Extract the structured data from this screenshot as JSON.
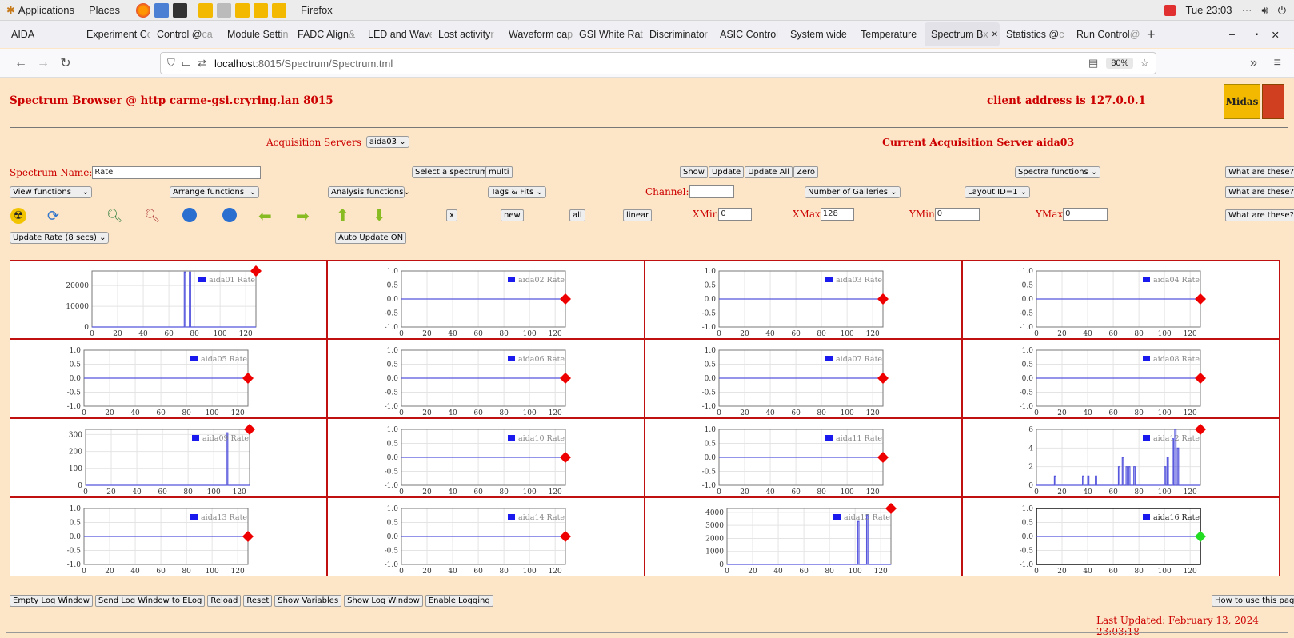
{
  "gnome": {
    "applications": "Applications",
    "places": "Places",
    "active_app": "Firefox",
    "clock": "Tue 23:03"
  },
  "tabs": [
    {
      "label": "AIDA",
      "fade": ""
    },
    {
      "label": "Experiment C",
      "fade": "o"
    },
    {
      "label": "Control @ ",
      "fade": "ca"
    },
    {
      "label": "Module Setti",
      "fade": "n"
    },
    {
      "label": "FADC Align ",
      "fade": "&"
    },
    {
      "label": "LED and Wav",
      "fade": "e"
    },
    {
      "label": "Lost activity ",
      "fade": "r"
    },
    {
      "label": "Waveform ca",
      "fade": "p"
    },
    {
      "label": "GSI White Ra",
      "fade": "t"
    },
    {
      "label": "Discriminato",
      "fade": "r"
    },
    {
      "label": "ASIC Contro",
      "fade": "l"
    },
    {
      "label": "System wide",
      "fade": ""
    },
    {
      "label": "Temperature",
      "fade": ""
    },
    {
      "label": "Spectrum B",
      "fade": "x"
    },
    {
      "label": "Statistics @ ",
      "fade": "c"
    },
    {
      "label": "Run Control ",
      "fade": "@"
    }
  ],
  "nav": {
    "url_host": "localhost",
    "url_path": ":8015/Spectrum/Spectrum.tml",
    "zoom": "80%"
  },
  "page": {
    "browser_title": "Spectrum Browser @ http carme-gsi.cryring.lan 8015",
    "client_address": "client address is 127.0.0.1",
    "logo_text": "Midas",
    "acq_servers_label": "Acquisition Servers",
    "acq_server_value": "aida03",
    "current_server": "Current Acquisition Server aida03",
    "spectrum_name_label": "Spectrum Name:",
    "spectrum_name_value": "Rate",
    "select_spectrum": "Select a spectrum",
    "multi": "multi",
    "show": "Show",
    "update": "Update",
    "update_all": "Update All",
    "zero": "Zero",
    "spectra_functions": "Spectra functions",
    "what": "What are these?",
    "view_functions": "View functions",
    "arrange_functions": "Arrange functions",
    "analysis_functions": "Analysis functions",
    "tags_fits": "Tags & Fits",
    "channel_label": "Channel:",
    "channel_value": "",
    "num_galleries": "Number of Galleries",
    "layout": "Layout ID=1",
    "btn_x": "x",
    "btn_new": "new",
    "btn_all": "all",
    "btn_linear": "linear",
    "xmin_label": "XMin",
    "xmin_value": "0",
    "xmax_label": "XMax",
    "xmax_value": "128",
    "ymin_label": "YMin",
    "ymin_value": "0",
    "ymax_label": "YMax",
    "ymax_value": "0",
    "update_rate": "Update Rate (8 secs)",
    "auto_update": "Auto Update ON",
    "bottom_buttons": [
      "Empty Log Window",
      "Send Log Window to ELog",
      "Reload",
      "Reset",
      "Show Variables",
      "Show Log Window",
      "Enable Logging"
    ],
    "how_to": "How to use this page",
    "last_updated": "Last Updated: February 13, 2024 23:03:18"
  },
  "colors": {
    "accent_red": "#cc0000",
    "series_blue": "#2222dd",
    "marker_red": "#ee0000",
    "marker_green": "#22dd22"
  },
  "chart_data": [
    {
      "type": "line",
      "legend": "aida01 Rate",
      "xlim": [
        0,
        128
      ],
      "ylim": [
        0,
        27000
      ],
      "yticks": [
        0,
        10000,
        20000
      ],
      "marker": "red",
      "spikes": [
        [
          72,
          26500
        ],
        [
          76,
          26500
        ]
      ]
    },
    {
      "type": "line",
      "legend": "aida02 Rate",
      "xlim": [
        0,
        128
      ],
      "ylim": [
        -1,
        1
      ],
      "yticks": [
        -1.0,
        -0.5,
        0.0,
        0.5,
        1.0
      ],
      "marker": "red",
      "spikes": []
    },
    {
      "type": "line",
      "legend": "aida03 Rate",
      "xlim": [
        0,
        128
      ],
      "ylim": [
        -1,
        1
      ],
      "yticks": [
        -1.0,
        -0.5,
        0.0,
        0.5,
        1.0
      ],
      "marker": "red",
      "spikes": []
    },
    {
      "type": "line",
      "legend": "aida04 Rate",
      "xlim": [
        0,
        128
      ],
      "ylim": [
        -1,
        1
      ],
      "yticks": [
        -1.0,
        -0.5,
        0.0,
        0.5,
        1.0
      ],
      "marker": "red",
      "spikes": []
    },
    {
      "type": "line",
      "legend": "aida05 Rate",
      "xlim": [
        0,
        128
      ],
      "ylim": [
        -1,
        1
      ],
      "yticks": [
        -1.0,
        -0.5,
        0.0,
        0.5,
        1.0
      ],
      "marker": "red",
      "spikes": []
    },
    {
      "type": "line",
      "legend": "aida06 Rate",
      "xlim": [
        0,
        128
      ],
      "ylim": [
        -1,
        1
      ],
      "yticks": [
        -1.0,
        -0.5,
        0.0,
        0.5,
        1.0
      ],
      "marker": "red",
      "spikes": []
    },
    {
      "type": "line",
      "legend": "aida07 Rate",
      "xlim": [
        0,
        128
      ],
      "ylim": [
        -1,
        1
      ],
      "yticks": [
        -1.0,
        -0.5,
        0.0,
        0.5,
        1.0
      ],
      "marker": "red",
      "spikes": []
    },
    {
      "type": "line",
      "legend": "aida08 Rate",
      "xlim": [
        0,
        128
      ],
      "ylim": [
        -1,
        1
      ],
      "yticks": [
        -1.0,
        -0.5,
        0.0,
        0.5,
        1.0
      ],
      "marker": "red",
      "spikes": []
    },
    {
      "type": "line",
      "legend": "aida09 Rate",
      "xlim": [
        0,
        128
      ],
      "ylim": [
        0,
        330
      ],
      "yticks": [
        0,
        100,
        200,
        300
      ],
      "marker": "red",
      "spikes": [
        [
          110,
          310
        ]
      ]
    },
    {
      "type": "line",
      "legend": "aida10 Rate",
      "xlim": [
        0,
        128
      ],
      "ylim": [
        -1,
        1
      ],
      "yticks": [
        -1.0,
        -0.5,
        0.0,
        0.5,
        1.0
      ],
      "marker": "red",
      "spikes": []
    },
    {
      "type": "line",
      "legend": "aida11 Rate",
      "xlim": [
        0,
        128
      ],
      "ylim": [
        -1,
        1
      ],
      "yticks": [
        -1.0,
        -0.5,
        0.0,
        0.5,
        1.0
      ],
      "marker": "red",
      "spikes": []
    },
    {
      "type": "line",
      "legend": "aida12 Rate",
      "xlim": [
        0,
        128
      ],
      "ylim": [
        0,
        6
      ],
      "yticks": [
        0,
        2,
        4,
        6
      ],
      "marker": "red",
      "spikes": [
        [
          14,
          1
        ],
        [
          36,
          1
        ],
        [
          40,
          1
        ],
        [
          46,
          1
        ],
        [
          64,
          2
        ],
        [
          67,
          3
        ],
        [
          70,
          2
        ],
        [
          72,
          2
        ],
        [
          76,
          2
        ],
        [
          100,
          2
        ],
        [
          102,
          3
        ],
        [
          106,
          5
        ],
        [
          108,
          6
        ],
        [
          110,
          4
        ]
      ]
    },
    {
      "type": "line",
      "legend": "aida13 Rate",
      "xlim": [
        0,
        128
      ],
      "ylim": [
        -1,
        1
      ],
      "yticks": [
        -1.0,
        -0.5,
        0.0,
        0.5,
        1.0
      ],
      "marker": "red",
      "spikes": []
    },
    {
      "type": "line",
      "legend": "aida14 Rate",
      "xlim": [
        0,
        128
      ],
      "ylim": [
        -1,
        1
      ],
      "yticks": [
        -1.0,
        -0.5,
        0.0,
        0.5,
        1.0
      ],
      "marker": "red",
      "spikes": []
    },
    {
      "type": "line",
      "legend": "aida15 Rate",
      "xlim": [
        0,
        128
      ],
      "ylim": [
        0,
        4300
      ],
      "yticks": [
        0,
        1000,
        2000,
        3000,
        4000
      ],
      "marker": "red",
      "spikes": [
        [
          102,
          3300
        ],
        [
          109,
          3800
        ]
      ]
    },
    {
      "type": "line",
      "legend": "aida16 Rate",
      "xlim": [
        0,
        128
      ],
      "ylim": [
        -1,
        1
      ],
      "yticks": [
        -1.0,
        -0.5,
        0.0,
        0.5,
        1.0
      ],
      "marker": "green",
      "spikes": []
    }
  ],
  "xticks": [
    0,
    20,
    40,
    60,
    80,
    100,
    120
  ]
}
